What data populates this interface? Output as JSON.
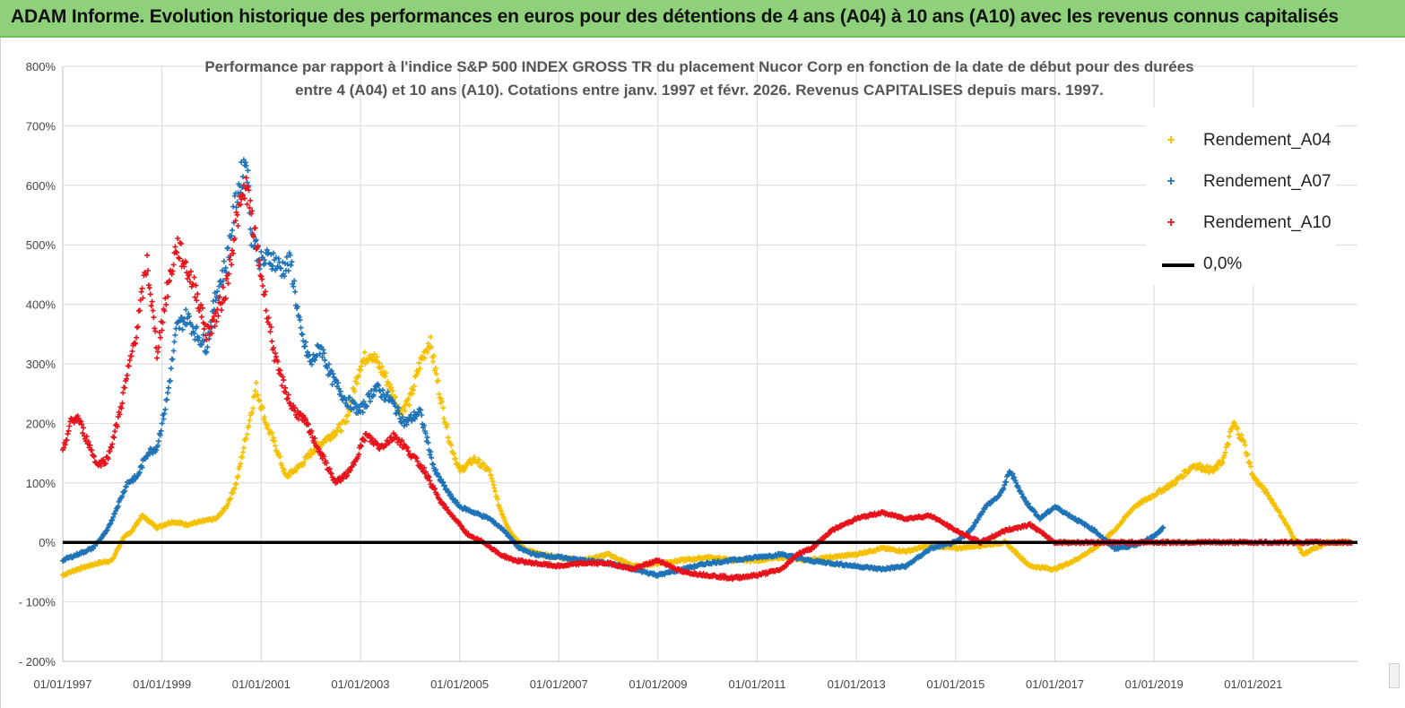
{
  "banner": {
    "title": "ADAM Informe. Evolution historique des performances en euros pour des détentions de 4 ans (A04) à 10 ans (A10) avec les revenus connus capitalisés"
  },
  "colors": {
    "banner_bg": "#8fd17a",
    "series_A04": "#f5c000",
    "series_A07": "#1f73b7",
    "series_A10": "#e8121b",
    "zero_line": "#000000",
    "grid": "#d9d9d9"
  },
  "chart_data": {
    "type": "scatter",
    "title_line1": "Performance par rapport à l'indice S&P 500 INDEX GROSS TR  du placement Nucor Corp en fonction de la date de début pour des durées",
    "title_line2": "entre 4 (A04) et 10 ans (A10). Cotations entre janv. 1997 et févr. 2026. Revenus CAPITALISES depuis mars. 1997.",
    "xlabel": "",
    "ylabel": "",
    "ylim": [
      -200,
      800
    ],
    "y_ticks": [
      "800%",
      "700%",
      "600%",
      "500%",
      "400%",
      "300%",
      "200%",
      "100%",
      "0%",
      "- 100%",
      "- 200%"
    ],
    "y_tick_values": [
      800,
      700,
      600,
      500,
      400,
      300,
      200,
      100,
      0,
      -100,
      -200
    ],
    "xlim": [
      1997.0,
      2023.1
    ],
    "x_ticks": [
      "01/01/1997",
      "01/01/1999",
      "01/01/2001",
      "01/01/2003",
      "01/01/2005",
      "01/01/2007",
      "01/01/2009",
      "01/01/2011",
      "01/01/2013",
      "01/01/2015",
      "01/01/2017",
      "01/01/2019",
      "01/01/2021"
    ],
    "x_tick_values": [
      1997,
      1999,
      2001,
      2003,
      2005,
      2007,
      2009,
      2011,
      2013,
      2015,
      2017,
      2019,
      2021
    ],
    "grid": true,
    "legend_position": "top-right",
    "series": [
      {
        "name": "Rendement_A04",
        "marker": "+",
        "x": [
          1997.0,
          1997.3,
          1997.7,
          1998.0,
          1998.2,
          1998.4,
          1998.6,
          1998.9,
          1999.2,
          1999.5,
          1999.8,
          2000.1,
          2000.3,
          2000.5,
          2000.7,
          2000.9,
          2001.1,
          2001.3,
          2001.5,
          2001.8,
          2002.1,
          2002.4,
          2002.7,
          2003.0,
          2003.2,
          2003.5,
          2003.8,
          2004.0,
          2004.2,
          2004.4,
          2004.6,
          2004.8,
          2005.0,
          2005.3,
          2005.6,
          2005.8,
          2006.0,
          2006.3,
          2006.6,
          2007.0,
          2007.5,
          2008.0,
          2008.5,
          2009.0,
          2009.5,
          2010.0,
          2010.5,
          2011.0,
          2011.5,
          2012.0,
          2012.5,
          2013.0,
          2013.5,
          2014.0,
          2014.5,
          2015.0,
          2015.5,
          2016.0,
          2016.5,
          2017.0,
          2017.4,
          2017.8,
          2018.2,
          2018.6,
          2019.0,
          2019.4,
          2019.8,
          2020.2,
          2020.4,
          2020.6,
          2020.8,
          2021.0,
          2021.3,
          2021.6,
          2022.0,
          2022.5,
          2023.0
        ],
        "y": [
          -55,
          -45,
          -35,
          -30,
          5,
          20,
          45,
          25,
          35,
          30,
          35,
          40,
          60,
          100,
          180,
          260,
          200,
          160,
          110,
          130,
          160,
          180,
          200,
          300,
          320,
          280,
          220,
          240,
          300,
          340,
          250,
          170,
          120,
          140,
          120,
          60,
          20,
          -10,
          -20,
          -25,
          -30,
          -20,
          -40,
          -35,
          -30,
          -25,
          -30,
          -30,
          -25,
          -30,
          -25,
          -20,
          -10,
          -15,
          -5,
          -10,
          -5,
          0,
          -40,
          -45,
          -30,
          -10,
          20,
          60,
          80,
          100,
          130,
          120,
          140,
          200,
          170,
          110,
          80,
          40,
          -20,
          0,
          0
        ]
      },
      {
        "name": "Rendement_A07",
        "marker": "+",
        "x": [
          1997.0,
          1997.3,
          1997.6,
          1997.9,
          1998.1,
          1998.3,
          1998.5,
          1998.7,
          1998.9,
          1999.1,
          1999.3,
          1999.5,
          1999.7,
          1999.9,
          2000.1,
          2000.3,
          2000.5,
          2000.7,
          2000.8,
          2001.0,
          2001.2,
          2001.4,
          2001.6,
          2001.8,
          2002.0,
          2002.2,
          2002.4,
          2002.7,
          2003.0,
          2003.3,
          2003.6,
          2003.9,
          2004.2,
          2004.5,
          2004.8,
          2005.0,
          2005.3,
          2005.6,
          2005.9,
          2006.2,
          2006.5,
          2007.0,
          2007.5,
          2008.0,
          2008.5,
          2009.0,
          2009.5,
          2010.0,
          2010.5,
          2011.0,
          2011.5,
          2012.0,
          2012.5,
          2013.0,
          2013.5,
          2014.0,
          2014.5,
          2015.0,
          2015.3,
          2015.6,
          2015.9,
          2016.1,
          2016.4,
          2016.7,
          2017.0,
          2017.4,
          2017.8,
          2018.2,
          2018.6,
          2019.0,
          2019.2
        ],
        "y": [
          -30,
          -20,
          -10,
          20,
          60,
          100,
          110,
          150,
          160,
          240,
          360,
          380,
          350,
          330,
          420,
          470,
          580,
          650,
          520,
          470,
          480,
          460,
          470,
          350,
          300,
          330,
          280,
          240,
          220,
          260,
          240,
          200,
          220,
          120,
          80,
          60,
          50,
          40,
          20,
          -10,
          -20,
          -25,
          -30,
          -35,
          -45,
          -55,
          -45,
          -35,
          -30,
          -25,
          -20,
          -30,
          -35,
          -40,
          -45,
          -40,
          -10,
          0,
          20,
          60,
          80,
          120,
          70,
          40,
          60,
          40,
          20,
          -10,
          -5,
          10,
          25
        ]
      },
      {
        "name": "Rendement_A10",
        "marker": "+",
        "x": [
          1997.0,
          1997.15,
          1997.3,
          1997.5,
          1997.7,
          1997.9,
          1998.1,
          1998.3,
          1998.5,
          1998.7,
          1998.9,
          1999.1,
          1999.3,
          1999.5,
          1999.7,
          1999.9,
          2000.1,
          2000.3,
          2000.5,
          2000.7,
          2000.9,
          2001.1,
          2001.3,
          2001.6,
          2001.9,
          2002.2,
          2002.5,
          2002.8,
          2003.1,
          2003.4,
          2003.7,
          2004.0,
          2004.3,
          2004.6,
          2004.9,
          2005.2,
          2005.5,
          2005.8,
          2006.1,
          2006.5,
          2007.0,
          2007.5,
          2008.0,
          2008.5,
          2009.0,
          2009.5,
          2010.0,
          2010.5,
          2011.0,
          2011.5,
          2011.8,
          2012.1,
          2012.5,
          2013.0,
          2013.5,
          2014.0,
          2014.5,
          2015.0,
          2015.5,
          2016.0,
          2016.5,
          2017.0,
          2018.0,
          2019.0,
          2020.0,
          2021.0,
          2022.0,
          2023.0
        ],
        "y": [
          150,
          200,
          210,
          170,
          130,
          140,
          200,
          280,
          360,
          470,
          320,
          420,
          500,
          460,
          420,
          350,
          380,
          430,
          540,
          600,
          500,
          400,
          300,
          230,
          200,
          150,
          100,
          120,
          180,
          160,
          180,
          150,
          120,
          70,
          40,
          10,
          0,
          -20,
          -30,
          -35,
          -40,
          -35,
          -35,
          -45,
          -30,
          -50,
          -55,
          -60,
          -55,
          -45,
          -20,
          -10,
          20,
          40,
          50,
          40,
          45,
          20,
          0,
          20,
          30,
          0,
          0,
          0,
          0,
          0,
          0,
          0
        ]
      },
      {
        "name": "0,0%",
        "marker": "line",
        "x": [
          1997.0,
          2023.1
        ],
        "y": [
          0,
          0
        ]
      }
    ]
  },
  "legend": {
    "items": [
      {
        "label": "Rendement_A04",
        "marker": "+"
      },
      {
        "label": "Rendement_A07",
        "marker": "+"
      },
      {
        "label": "Rendement_A10",
        "marker": "+"
      },
      {
        "label": "0,0%",
        "marker": "line"
      }
    ]
  }
}
